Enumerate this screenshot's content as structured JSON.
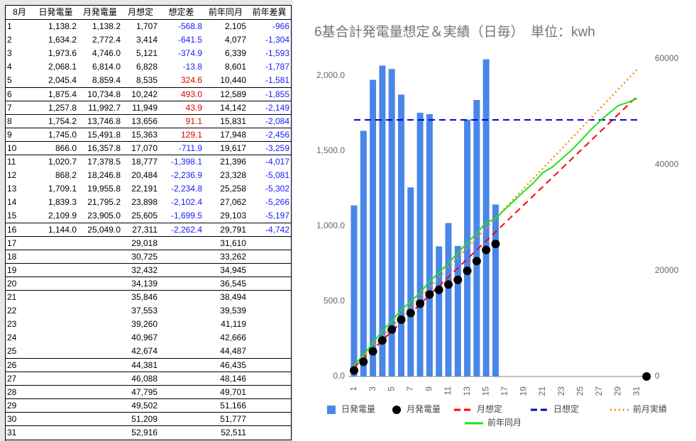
{
  "table": {
    "header": [
      "8月",
      "日発電量",
      "月発電量",
      "月想定",
      "想定差",
      "前年同月",
      "前年差異"
    ],
    "colored_columns": [
      4,
      6
    ],
    "negative_color": "#1a1aff",
    "positive_color": "#e00000",
    "rows": [
      [
        "1",
        "1,138.2",
        "1,138.2",
        "1,707",
        "-568.8",
        "2,105",
        "-966"
      ],
      [
        "2",
        "1,634.2",
        "2,772.4",
        "3,414",
        "-641.5",
        "4,077",
        "-1,304"
      ],
      [
        "3",
        "1,973.6",
        "4,746.0",
        "5,121",
        "-374.9",
        "6,339",
        "-1,593"
      ],
      [
        "4",
        "2,068.1",
        "6,814.0",
        "6,828",
        "-13.8",
        "8,601",
        "-1,787"
      ],
      [
        "5",
        "2,045.4",
        "8,859.4",
        "8,535",
        "324.6",
        "10,440",
        "-1,581"
      ],
      [
        "6",
        "1,875.4",
        "10,734.8",
        "10,242",
        "493.0",
        "12,589",
        "-1,855"
      ],
      [
        "7",
        "1,257.8",
        "11,992.7",
        "11,949",
        "43.9",
        "14,142",
        "-2,149"
      ],
      [
        "8",
        "1,754.2",
        "13,746.8",
        "13,656",
        "91.1",
        "15,831",
        "-2,084"
      ],
      [
        "9",
        "1,745.0",
        "15,491.8",
        "15,363",
        "129.1",
        "17,948",
        "-2,456"
      ],
      [
        "10",
        "866.0",
        "16,357.8",
        "17,070",
        "-711.9",
        "19,617",
        "-3,259"
      ],
      [
        "11",
        "1,020.7",
        "17,378.5",
        "18,777",
        "-1,398.1",
        "21,396",
        "-4,017"
      ],
      [
        "12",
        "868.2",
        "18,246.8",
        "20,484",
        "-2,236.9",
        "23,328",
        "-5,081"
      ],
      [
        "13",
        "1,709.1",
        "19,955.8",
        "22,191",
        "-2,234.8",
        "25,258",
        "-5,302"
      ],
      [
        "14",
        "1,839.3",
        "21,795.2",
        "23,898",
        "-2,102.4",
        "27,062",
        "-5,266"
      ],
      [
        "15",
        "2,109.9",
        "23,905.0",
        "25,605",
        "-1,699.5",
        "29,103",
        "-5,197"
      ],
      [
        "16",
        "1,144.0",
        "25,049.0",
        "27,311",
        "-2,262.4",
        "29,791",
        "-4,742"
      ],
      [
        "17",
        null,
        null,
        "29,018",
        null,
        "31,610",
        null
      ],
      [
        "18",
        null,
        null,
        "30,725",
        null,
        "33,262",
        null
      ],
      [
        "19",
        null,
        null,
        "32,432",
        null,
        "34,945",
        null
      ],
      [
        "20",
        null,
        null,
        "34,139",
        null,
        "36,545",
        null
      ],
      [
        "21",
        null,
        null,
        "35,846",
        null,
        "38,494",
        null
      ],
      [
        "22",
        null,
        null,
        "37,553",
        null,
        "39,539",
        null
      ],
      [
        "23",
        null,
        null,
        "39,260",
        null,
        "41,119",
        null
      ],
      [
        "24",
        null,
        null,
        "40,967",
        null,
        "42,666",
        null
      ],
      [
        "25",
        null,
        null,
        "42,674",
        null,
        "44,487",
        null
      ],
      [
        "26",
        null,
        null,
        "44,381",
        null,
        "46,435",
        null
      ],
      [
        "27",
        null,
        null,
        "46,088",
        null,
        "48,146",
        null
      ],
      [
        "28",
        null,
        null,
        "47,795",
        null,
        "49,701",
        null
      ],
      [
        "29",
        null,
        null,
        "49,502",
        null,
        "51,166",
        null
      ],
      [
        "30",
        null,
        null,
        "51,209",
        null,
        "51,777",
        null
      ],
      [
        "31",
        null,
        null,
        "52,916",
        null,
        "52,511",
        null
      ]
    ]
  },
  "chart_data": {
    "type": "combo",
    "title": "6基合計発電量想定＆実績（日毎）　単位：kwh",
    "categories": [
      "1",
      null,
      "3",
      null,
      "5",
      null,
      "7",
      null,
      "9",
      null,
      "11",
      null,
      "13",
      null,
      "15",
      null,
      "17",
      null,
      "19",
      null,
      "21",
      null,
      "23",
      null,
      "25",
      null,
      "27",
      null,
      "29",
      null,
      "31",
      null
    ],
    "ylim": [
      0,
      2113
    ],
    "yticks": [
      {
        "value": 0,
        "label": "0.0"
      },
      {
        "value": 500,
        "label": "500.0"
      },
      {
        "value": 1000,
        "label": "1,000.0"
      },
      {
        "value": 1500,
        "label": "1,500.0"
      },
      {
        "value": 2000,
        "label": "2,000.0"
      }
    ],
    "y2lim": [
      0,
      60000
    ],
    "y2ticks": [
      0,
      20000,
      40000,
      60000
    ],
    "series": [
      {
        "name": "日発電量",
        "mark": "bar",
        "color": "#4a86e8",
        "values": [
          1138.2,
          1634.2,
          1973.6,
          2068.1,
          2045.4,
          1875.4,
          1257.8,
          1754.2,
          1745.0,
          866.0,
          1020.7,
          868.2,
          1709.1,
          1839.3,
          2109.9,
          1144.0,
          null,
          null,
          null,
          null,
          null,
          null,
          null,
          null,
          null,
          null,
          null,
          null,
          null,
          null,
          null,
          null
        ]
      },
      {
        "name": "月発電量",
        "mark": "dot",
        "axis": "y2",
        "color": "#000000",
        "values": [
          1138.2,
          2772.4,
          4746.0,
          6814.0,
          8859.4,
          10734.8,
          11992.7,
          13746.8,
          15491.8,
          16357.8,
          17378.5,
          18246.8,
          19955.8,
          21795.2,
          23905.0,
          25049.0,
          null,
          null,
          null,
          null,
          null,
          null,
          null,
          null,
          null,
          null,
          null,
          null,
          null,
          null,
          null,
          0
        ]
      },
      {
        "name": "月想定",
        "mark": "line",
        "dash": "dashed",
        "axis": "y2",
        "color": "#ff0000",
        "values": [
          1707,
          3414,
          5121,
          6828,
          8535,
          10242,
          11949,
          13656,
          15363,
          17070,
          18777,
          20484,
          22191,
          23898,
          25605,
          27311,
          29018,
          30725,
          32432,
          34139,
          35846,
          37553,
          39260,
          40967,
          42674,
          44381,
          46088,
          47795,
          49502,
          51209,
          52916,
          null
        ]
      },
      {
        "name": "日想定",
        "mark": "line",
        "dash": "dashed",
        "color": "#0000cc",
        "values": [
          1707,
          1707,
          1707,
          1707,
          1707,
          1707,
          1707,
          1707,
          1707,
          1707,
          1707,
          1707,
          1707,
          1707,
          1707,
          1707,
          1707,
          1707,
          1707,
          1707,
          1707,
          1707,
          1707,
          1707,
          1707,
          1707,
          1707,
          1707,
          1707,
          1707,
          1707,
          null
        ]
      },
      {
        "name": "前月実績",
        "mark": "line",
        "dash": "dotted",
        "axis": "y2",
        "color": "#ff8c1a",
        "values": [
          1870,
          3740,
          5610,
          7480,
          9350,
          11220,
          13090,
          14960,
          16830,
          18700,
          20570,
          22440,
          24310,
          26180,
          28050,
          29920,
          31790,
          33660,
          35530,
          37400,
          39270,
          41140,
          43010,
          44880,
          46750,
          48620,
          50490,
          52360,
          54230,
          56100,
          57970,
          null
        ]
      },
      {
        "name": "前年同月",
        "mark": "line",
        "axis": "y2",
        "color": "#22e01a",
        "values": [
          2105,
          4077,
          6339,
          8601,
          10440,
          12589,
          14142,
          15831,
          17948,
          19617,
          21396,
          23328,
          25258,
          27062,
          29103,
          29791,
          31610,
          33262,
          34945,
          36545,
          38494,
          39539,
          41119,
          42666,
          44487,
          46435,
          48146,
          49701,
          51166,
          51777,
          52511,
          null
        ]
      }
    ]
  }
}
